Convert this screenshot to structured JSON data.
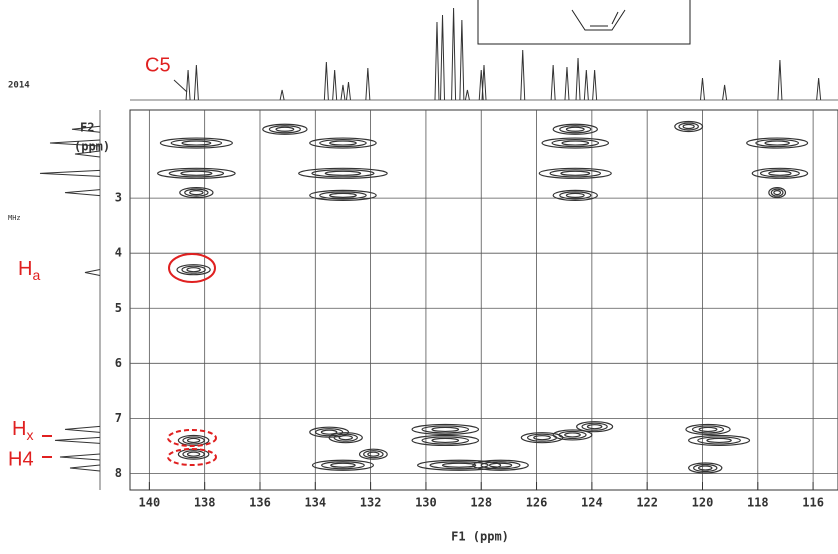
{
  "chart_data": {
    "type": "contour",
    "x_label": "F1 (ppm)",
    "y_label_line1": "F2",
    "y_label_line2": "(ppm)",
    "xlim": [
      140.7,
      115.1
    ],
    "ylim": [
      1.4,
      8.3
    ],
    "xticks": [
      140,
      138,
      136,
      134,
      132,
      130,
      128,
      126,
      124,
      122,
      120,
      118,
      116
    ],
    "yticks": [
      3,
      4,
      5,
      6,
      7,
      8
    ],
    "grid": true,
    "color": "#333333",
    "peaks": [
      {
        "x": 138.3,
        "y": 2.0,
        "width": 2.6
      },
      {
        "x": 138.3,
        "y": 2.55,
        "width": 2.8
      },
      {
        "x": 138.3,
        "y": 2.9,
        "width": 1.2
      },
      {
        "x": 138.4,
        "y": 4.3,
        "width": 1.2
      },
      {
        "x": 138.4,
        "y": 7.4,
        "width": 1.1
      },
      {
        "x": 138.4,
        "y": 7.65,
        "width": 1.1
      },
      {
        "x": 135.1,
        "y": 1.75,
        "width": 1.6
      },
      {
        "x": 133.0,
        "y": 2.0,
        "width": 2.4
      },
      {
        "x": 133.0,
        "y": 2.55,
        "width": 3.2
      },
      {
        "x": 133.0,
        "y": 2.95,
        "width": 2.4
      },
      {
        "x": 133.5,
        "y": 7.25,
        "width": 1.4
      },
      {
        "x": 132.9,
        "y": 7.35,
        "width": 1.2
      },
      {
        "x": 133.0,
        "y": 7.85,
        "width": 2.2
      },
      {
        "x": 131.9,
        "y": 7.65,
        "width": 1.0
      },
      {
        "x": 129.3,
        "y": 7.2,
        "width": 2.4
      },
      {
        "x": 129.3,
        "y": 7.4,
        "width": 2.4
      },
      {
        "x": 128.8,
        "y": 7.85,
        "width": 3.0
      },
      {
        "x": 127.3,
        "y": 7.85,
        "width": 2.0
      },
      {
        "x": 125.8,
        "y": 7.35,
        "width": 1.5
      },
      {
        "x": 124.7,
        "y": 7.3,
        "width": 1.4
      },
      {
        "x": 123.9,
        "y": 7.15,
        "width": 1.3
      },
      {
        "x": 124.6,
        "y": 1.75,
        "width": 1.6
      },
      {
        "x": 124.6,
        "y": 2.0,
        "width": 2.4
      },
      {
        "x": 124.6,
        "y": 2.55,
        "width": 2.6
      },
      {
        "x": 124.6,
        "y": 2.95,
        "width": 1.6
      },
      {
        "x": 120.5,
        "y": 1.7,
        "width": 1.0
      },
      {
        "x": 119.8,
        "y": 7.2,
        "width": 1.6
      },
      {
        "x": 119.4,
        "y": 7.4,
        "width": 2.2
      },
      {
        "x": 119.9,
        "y": 7.9,
        "width": 1.2
      },
      {
        "x": 117.3,
        "y": 2.0,
        "width": 2.2
      },
      {
        "x": 117.2,
        "y": 2.55,
        "width": 2.0
      },
      {
        "x": 117.3,
        "y": 2.9,
        "width": 0.6
      }
    ],
    "top_projection": [
      {
        "x": 138.6,
        "intensity": 30
      },
      {
        "x": 138.3,
        "intensity": 35
      },
      {
        "x": 135.2,
        "intensity": 10
      },
      {
        "x": 133.6,
        "intensity": 38
      },
      {
        "x": 133.3,
        "intensity": 30
      },
      {
        "x": 133.0,
        "intensity": 15
      },
      {
        "x": 132.8,
        "intensity": 18
      },
      {
        "x": 132.1,
        "intensity": 32
      },
      {
        "x": 129.6,
        "intensity": 78
      },
      {
        "x": 129.4,
        "intensity": 85
      },
      {
        "x": 129.0,
        "intensity": 92
      },
      {
        "x": 128.7,
        "intensity": 80
      },
      {
        "x": 128.5,
        "intensity": 10
      },
      {
        "x": 128.0,
        "intensity": 30
      },
      {
        "x": 127.9,
        "intensity": 35
      },
      {
        "x": 126.5,
        "intensity": 50
      },
      {
        "x": 125.4,
        "intensity": 35
      },
      {
        "x": 124.9,
        "intensity": 33
      },
      {
        "x": 124.5,
        "intensity": 42
      },
      {
        "x": 124.2,
        "intensity": 30
      },
      {
        "x": 123.9,
        "intensity": 30
      },
      {
        "x": 120.0,
        "intensity": 22
      },
      {
        "x": 119.2,
        "intensity": 15
      },
      {
        "x": 117.2,
        "intensity": 40
      },
      {
        "x": 115.8,
        "intensity": 22
      }
    ],
    "left_projection": [
      {
        "y": 1.75,
        "intensity": 28
      },
      {
        "y": 2.0,
        "intensity": 50
      },
      {
        "y": 2.2,
        "intensity": 25
      },
      {
        "y": 2.55,
        "intensity": 60
      },
      {
        "y": 2.9,
        "intensity": 35
      },
      {
        "y": 4.35,
        "intensity": 15
      },
      {
        "y": 7.2,
        "intensity": 35
      },
      {
        "y": 7.4,
        "intensity": 45
      },
      {
        "y": 7.7,
        "intensity": 40
      },
      {
        "y": 7.9,
        "intensity": 30
      }
    ],
    "annotations": {
      "c5": "C5",
      "ha": {
        "text": "H",
        "sub": "a"
      },
      "hx": {
        "text": "H",
        "sub": "x"
      },
      "h4": "H4"
    },
    "header_year": "2014",
    "header_unit": "MHz"
  }
}
